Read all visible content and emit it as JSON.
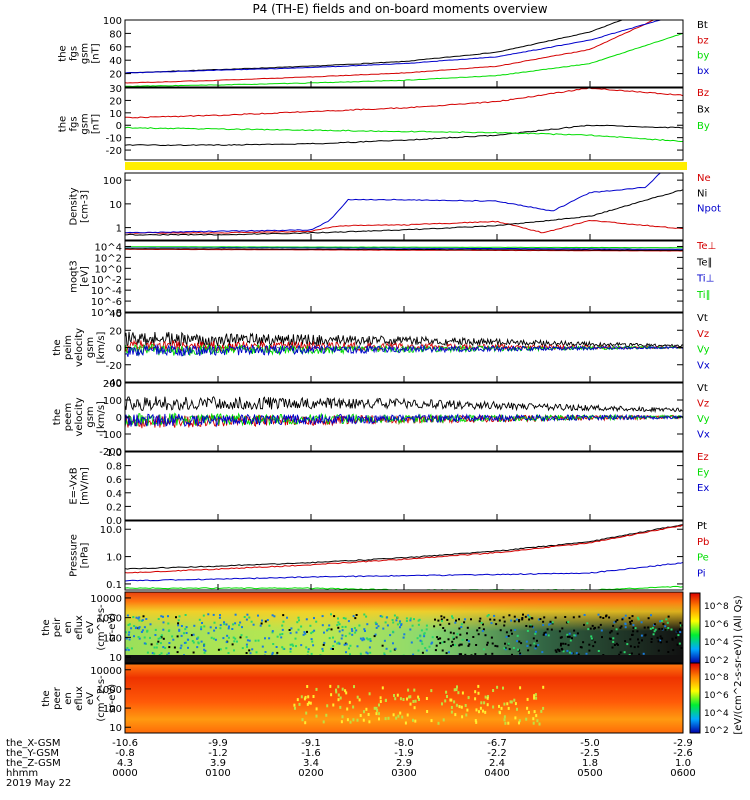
{
  "title": "P4 (TH-E) fields and on-board moments overview",
  "colors": {
    "black": "#000000",
    "red": "#d40000",
    "green": "#00dd00",
    "blue": "#0000cc",
    "yellow": "#ffee00"
  },
  "chart_data": [
    {
      "type": "line",
      "panel": "fgs_gsm_magnitude",
      "ylabel": [
        "the",
        "fgs",
        "gsm",
        "[nT]"
      ],
      "ylim": [
        0,
        100
      ],
      "yticks": [
        20,
        40,
        60,
        80,
        100
      ],
      "series": [
        {
          "name": "Bt",
          "color": "black",
          "x": [
            0,
            1,
            2,
            3,
            4,
            5,
            6
          ],
          "values": [
            21,
            26,
            31,
            38,
            52,
            82,
            135
          ]
        },
        {
          "name": "bz",
          "color": "red",
          "x": [
            0,
            1,
            2,
            3,
            4,
            5,
            6
          ],
          "values": [
            6,
            10,
            15,
            21,
            31,
            56,
            120
          ]
        },
        {
          "name": "by",
          "color": "green",
          "x": [
            0,
            1,
            2,
            3,
            4,
            5,
            6
          ],
          "values": [
            1,
            3,
            6,
            10,
            17,
            35,
            80
          ]
        },
        {
          "name": "bx",
          "color": "blue",
          "x": [
            0,
            1,
            2,
            3,
            4,
            5,
            6
          ],
          "values": [
            21,
            25,
            29,
            35,
            45,
            70,
            110
          ]
        }
      ]
    },
    {
      "type": "line",
      "panel": "fgs_gsm_components",
      "ylabel": [
        "the",
        "fgs",
        "gsm",
        "[nT]"
      ],
      "ylim": [
        -28,
        30
      ],
      "yticks": [
        -20,
        -10,
        0,
        10,
        20,
        30
      ],
      "series": [
        {
          "name": "Bz",
          "color": "red",
          "x": [
            0,
            1,
            2,
            3,
            4,
            4.9,
            5,
            6
          ],
          "values": [
            6,
            8,
            11,
            14,
            19,
            29,
            30,
            24
          ]
        },
        {
          "name": "Bx",
          "color": "black",
          "x": [
            0,
            1,
            2,
            3,
            4,
            5,
            6
          ],
          "values": [
            -16,
            -16,
            -15,
            -12,
            -8,
            0,
            -2
          ]
        },
        {
          "name": "By",
          "color": "green",
          "x": [
            0,
            1,
            2,
            3,
            4,
            5,
            6
          ],
          "values": [
            -2,
            -3,
            -4,
            -5,
            -6,
            -8,
            -13
          ]
        }
      ]
    },
    {
      "type": "line",
      "panel": "density",
      "log": true,
      "ylabel": [
        "Density",
        "[cm-3]"
      ],
      "ylim": [
        0.3,
        200
      ],
      "yticks": [
        1,
        10,
        100
      ],
      "series": [
        {
          "name": "Ne",
          "color": "red",
          "x": [
            0,
            1,
            2,
            2.3,
            3,
            4,
            4.5,
            5,
            6
          ],
          "values": [
            0.6,
            0.6,
            0.7,
            1.2,
            1.3,
            1.8,
            0.6,
            2,
            0.9
          ]
        },
        {
          "name": "Ni",
          "color": "black",
          "x": [
            0,
            1,
            2,
            3,
            4,
            5,
            6
          ],
          "values": [
            0.5,
            0.5,
            0.6,
            0.8,
            1.2,
            3,
            40
          ]
        },
        {
          "name": "Npot",
          "color": "blue",
          "x": [
            0,
            1,
            2,
            2.2,
            2.4,
            3,
            4,
            4.6,
            5,
            5.6,
            5.8
          ],
          "values": [
            0.6,
            0.7,
            0.8,
            2,
            15,
            15,
            13,
            5,
            30,
            50,
            300
          ]
        }
      ]
    },
    {
      "type": "line",
      "panel": "moments_temperature",
      "log": true,
      "ylabel": [
        "moqt3",
        "[eV]"
      ],
      "ylim": [
        1e-08,
        100000.0
      ],
      "yticks": [
        "10^-8",
        "10^-6",
        "10^-4",
        "10^-2",
        "10^0",
        "10^2",
        "10^4"
      ],
      "series": [
        {
          "name": "Te⊥",
          "color": "red",
          "x": [
            0,
            6
          ],
          "values": [
            3000,
            1500
          ]
        },
        {
          "name": "Te∥",
          "color": "black",
          "x": [
            0,
            6
          ],
          "values": [
            4000,
            2000
          ]
        },
        {
          "name": "Ti⊥",
          "color": "blue",
          "x": [
            0,
            6
          ],
          "values": [
            8000,
            3000
          ]
        },
        {
          "name": "Ti∥",
          "color": "green",
          "x": [
            0,
            6
          ],
          "values": [
            9000,
            6000
          ]
        }
      ]
    },
    {
      "type": "line",
      "panel": "peim_velocity_gsm",
      "ylabel": [
        "the",
        "peim",
        "velocity",
        "gsm",
        "[km/s]"
      ],
      "ylim": [
        -40,
        40
      ],
      "yticks": [
        -40,
        -20,
        0,
        20,
        40
      ],
      "series": [
        {
          "name": "Vt",
          "color": "black",
          "x": [
            0,
            3,
            6
          ],
          "values": [
            10,
            8,
            2
          ]
        },
        {
          "name": "Vz",
          "color": "red",
          "x": [
            0,
            3,
            6
          ],
          "values": [
            2,
            1,
            0
          ]
        },
        {
          "name": "Vy",
          "color": "green",
          "x": [
            0,
            3,
            6
          ],
          "values": [
            -3,
            -2,
            0
          ]
        },
        {
          "name": "Vx",
          "color": "blue",
          "x": [
            0,
            3,
            6
          ],
          "values": [
            -4,
            -2,
            0
          ]
        }
      ]
    },
    {
      "type": "line",
      "panel": "peem_velocity_gsm",
      "ylabel": [
        "the",
        "peem",
        "velocity",
        "gsm",
        "[km/s]"
      ],
      "ylim": [
        -200,
        200
      ],
      "yticks": [
        -200,
        -100,
        0,
        100,
        200
      ],
      "series": [
        {
          "name": "Vt",
          "color": "black",
          "x": [
            0,
            3,
            6
          ],
          "values": [
            80,
            80,
            40
          ]
        },
        {
          "name": "Vz",
          "color": "red",
          "x": [
            0,
            3,
            6
          ],
          "values": [
            -30,
            -15,
            0
          ]
        },
        {
          "name": "Vy",
          "color": "green",
          "x": [
            0,
            3,
            6
          ],
          "values": [
            -15,
            -10,
            0
          ]
        },
        {
          "name": "Vx",
          "color": "blue",
          "x": [
            0,
            3,
            6
          ],
          "values": [
            -20,
            -10,
            0
          ]
        }
      ]
    },
    {
      "type": "line",
      "panel": "e_field",
      "ylabel": [
        "E=-VxB",
        "[mV/m]"
      ],
      "ylim": [
        0,
        1
      ],
      "yticks": [
        "0.0",
        "0.2",
        "0.4",
        "0.6",
        "0.8",
        "1.0"
      ],
      "series": [
        {
          "name": "Ez",
          "color": "red"
        },
        {
          "name": "Ey",
          "color": "green"
        },
        {
          "name": "Ex",
          "color": "blue"
        }
      ]
    },
    {
      "type": "line",
      "panel": "pressure",
      "log": true,
      "ylabel": [
        "Pressure",
        "[nPa]"
      ],
      "ylim": [
        0.06,
        20
      ],
      "yticks": [
        "0.1",
        "1.0",
        "10.0"
      ],
      "series": [
        {
          "name": "Pt",
          "color": "black",
          "x": [
            0,
            1,
            2,
            3,
            4,
            5,
            6
          ],
          "values": [
            0.35,
            0.45,
            0.6,
            0.9,
            1.6,
            3.5,
            15
          ]
        },
        {
          "name": "Pb",
          "color": "red",
          "x": [
            0,
            1,
            2,
            3,
            4,
            5,
            6
          ],
          "values": [
            0.25,
            0.35,
            0.5,
            0.8,
            1.4,
            3.2,
            14
          ]
        },
        {
          "name": "Pe",
          "color": "green",
          "x": [
            0,
            1,
            2,
            3,
            4,
            5,
            6
          ],
          "values": [
            0.07,
            0.07,
            0.07,
            0.06,
            0.06,
            0.06,
            0.08
          ]
        },
        {
          "name": "Pi",
          "color": "blue",
          "x": [
            0,
            1,
            2,
            3,
            4,
            5,
            6
          ],
          "values": [
            0.13,
            0.15,
            0.18,
            0.2,
            0.22,
            0.25,
            0.6
          ]
        }
      ]
    },
    {
      "type": "heatmap",
      "panel": "peir_en_eflux",
      "ylabel": [
        "the",
        "peir",
        "en",
        "eflux",
        "eV",
        "(cm^2-s-",
        "sr-eV)"
      ],
      "yticks": [
        "10",
        "100",
        "1000",
        "10000"
      ]
    },
    {
      "type": "heatmap",
      "panel": "peer_en_eflux",
      "ylabel": [
        "the",
        "peer",
        "en",
        "eflux",
        "eV",
        "(cm^2-s-",
        "sr-eV)"
      ],
      "yticks": [
        "10",
        "100",
        "1000",
        "10000"
      ]
    }
  ],
  "colorbar": {
    "label": "[eV/(cm^2-s-sr-eV)] (All Qs)",
    "ticks_top": [
      "10^8",
      "10^6",
      "10^4",
      "10^2"
    ],
    "ticks_bottom": [
      "10^8",
      "10^6",
      "10^4",
      "10^2"
    ]
  },
  "x_axis": {
    "rows": [
      {
        "label": "the_X-GSM",
        "values": [
          "-10.6",
          "-9.9",
          "-9.1",
          "-8.0",
          "-6.7",
          "-5.0",
          "-2.9"
        ]
      },
      {
        "label": "the_Y-GSM",
        "values": [
          "-0.8",
          "-1.2",
          "-1.6",
          "-1.9",
          "-2.2",
          "-2.5",
          "-2.6"
        ]
      },
      {
        "label": "the_Z-GSM",
        "values": [
          "4.3",
          "3.9",
          "3.4",
          "2.9",
          "2.4",
          "1.8",
          "1.0"
        ]
      },
      {
        "label": "hhmm",
        "values": [
          "0000",
          "0100",
          "0200",
          "0300",
          "0400",
          "0500",
          "0600"
        ]
      }
    ],
    "date": "2019 May 22"
  }
}
